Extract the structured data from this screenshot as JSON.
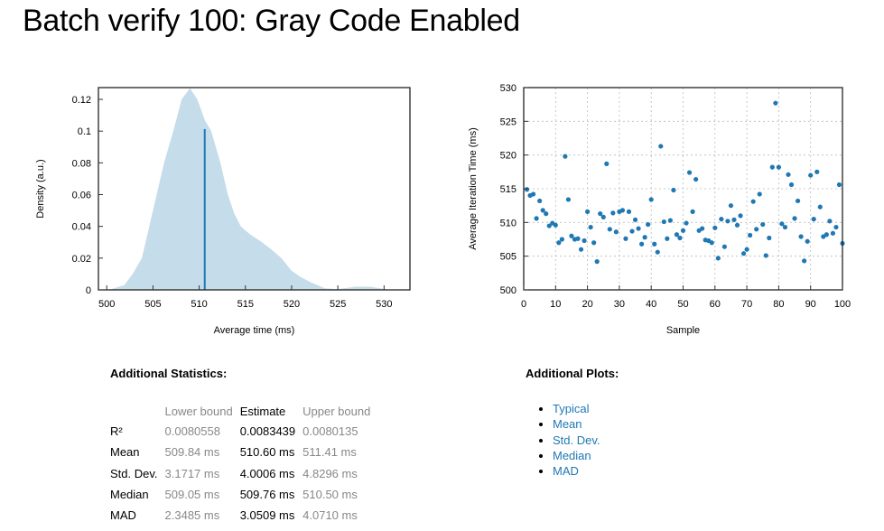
{
  "title": "Batch verify 100: Gray Code Enabled",
  "colors": {
    "accent": "#1f78b4",
    "density_fill": "#c5dcea",
    "link": "#1f78b4"
  },
  "chart_data": [
    {
      "type": "area",
      "xlabel": "Average time (ms)",
      "ylabel": "Density (a.u.)",
      "xlim": [
        499.1,
        532.8
      ],
      "ylim": [
        0,
        0.1274
      ],
      "xticks": [
        500,
        505,
        510,
        515,
        520,
        525,
        530
      ],
      "yticks": [
        0,
        0.02,
        0.04,
        0.06,
        0.08,
        0.1,
        0.12
      ],
      "ytick_labels": [
        "0",
        "0.02",
        "0.04",
        "0.06",
        "0.08",
        "0.1",
        "0.12"
      ],
      "grid": false,
      "density": [
        [
          500.2,
          0
        ],
        [
          500.8,
          0.001
        ],
        [
          501.9,
          0.003
        ],
        [
          502.8,
          0.01
        ],
        [
          503.8,
          0.02
        ],
        [
          504.6,
          0.04
        ],
        [
          505.4,
          0.06
        ],
        [
          506.2,
          0.08
        ],
        [
          507.2,
          0.1
        ],
        [
          508.1,
          0.12
        ],
        [
          509.0,
          0.127
        ],
        [
          509.8,
          0.12
        ],
        [
          510.6,
          0.107
        ],
        [
          511.3,
          0.1
        ],
        [
          512.3,
          0.08
        ],
        [
          513.1,
          0.06
        ],
        [
          513.8,
          0.048
        ],
        [
          514.5,
          0.04
        ],
        [
          515.5,
          0.035
        ],
        [
          516.8,
          0.03
        ],
        [
          517.9,
          0.025
        ],
        [
          518.9,
          0.02
        ],
        [
          520,
          0.012
        ],
        [
          521,
          0.008
        ],
        [
          522,
          0.005
        ],
        [
          523.6,
          0.001
        ],
        [
          525,
          0.0005
        ],
        [
          526.9,
          0.002
        ],
        [
          528.5,
          0.002
        ],
        [
          530.1,
          0.0005
        ],
        [
          530.8,
          0
        ]
      ],
      "mean_line": {
        "x": 510.6,
        "y": 0.1013
      }
    },
    {
      "type": "scatter",
      "xlabel": "Sample",
      "ylabel": "Average Iteration Time (ms)",
      "xlim": [
        0,
        100
      ],
      "ylim": [
        500,
        530
      ],
      "xticks": [
        0,
        10,
        20,
        30,
        40,
        50,
        60,
        70,
        80,
        90,
        100
      ],
      "yticks": [
        500,
        505,
        510,
        515,
        520,
        525,
        530
      ],
      "grid": true,
      "x": [
        1,
        2,
        3,
        4,
        5,
        6,
        7,
        8,
        9,
        10,
        11,
        12,
        13,
        14,
        15,
        16,
        17,
        18,
        19,
        20,
        21,
        22,
        23,
        24,
        25,
        26,
        27,
        28,
        29,
        30,
        31,
        32,
        33,
        34,
        35,
        36,
        37,
        38,
        39,
        40,
        41,
        42,
        43,
        44,
        45,
        46,
        47,
        48,
        49,
        50,
        51,
        52,
        53,
        54,
        55,
        56,
        57,
        58,
        59,
        60,
        61,
        62,
        63,
        64,
        65,
        66,
        67,
        68,
        69,
        70,
        71,
        72,
        73,
        74,
        75,
        76,
        77,
        78,
        79,
        80,
        81,
        82,
        83,
        84,
        85,
        86,
        87,
        88,
        89,
        90,
        91,
        92,
        93,
        94,
        95,
        96,
        97,
        98,
        99,
        100
      ],
      "y": [
        514.9,
        514.0,
        514.2,
        510.6,
        513.2,
        511.8,
        511.3,
        509.5,
        509.9,
        509.6,
        507.0,
        507.5,
        519.8,
        513.4,
        508.0,
        507.5,
        507.6,
        506.0,
        507.3,
        511.6,
        509.3,
        507.0,
        504.2,
        511.3,
        510.8,
        518.7,
        509.0,
        511.4,
        508.6,
        511.6,
        511.8,
        507.6,
        511.6,
        508.7,
        510.4,
        509.1,
        506.8,
        507.8,
        509.7,
        513.4,
        506.8,
        505.6,
        521.3,
        510.1,
        507.6,
        510.3,
        514.8,
        508.2,
        507.7,
        508.8,
        509.9,
        517.4,
        511.6,
        516.4,
        508.8,
        509.1,
        507.4,
        507.3,
        507.0,
        509.2,
        504.7,
        510.5,
        506.4,
        510.2,
        512.5,
        510.4,
        509.6,
        511.0,
        505.4,
        506.0,
        508.1,
        513.1,
        509.0,
        514.2,
        509.7,
        505.1,
        507.7,
        518.2,
        527.7,
        518.2,
        509.8,
        509.3,
        517.1,
        515.6,
        510.6,
        513.2,
        507.9,
        504.3,
        507.2,
        517.0,
        510.5,
        517.5,
        512.3,
        507.9,
        508.2,
        510.2,
        508.4,
        509.3,
        515.6,
        506.9
      ]
    }
  ],
  "stats": {
    "heading": "Additional Statistics:",
    "columns": [
      "",
      "Lower bound",
      "Estimate",
      "Upper bound"
    ],
    "rows": [
      {
        "label": "R²",
        "lower": "0.0080558",
        "estimate": "0.0083439",
        "upper": "0.0080135"
      },
      {
        "label": "Mean",
        "lower": "509.84 ms",
        "estimate": "510.60 ms",
        "upper": "511.41 ms"
      },
      {
        "label": "Std. Dev.",
        "lower": "3.1717 ms",
        "estimate": "4.0006 ms",
        "upper": "4.8296 ms"
      },
      {
        "label": "Median",
        "lower": "509.05 ms",
        "estimate": "509.76 ms",
        "upper": "510.50 ms"
      },
      {
        "label": "MAD",
        "lower": "2.3485 ms",
        "estimate": "3.0509 ms",
        "upper": "4.0710 ms"
      }
    ]
  },
  "plots": {
    "heading": "Additional Plots:",
    "items": [
      "Typical",
      "Mean",
      "Std. Dev.",
      "Median",
      "MAD"
    ]
  }
}
